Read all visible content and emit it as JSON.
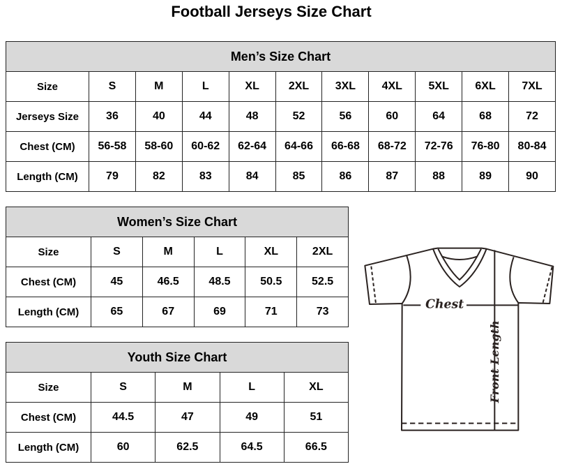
{
  "title": "Football Jerseys Size Chart",
  "men": {
    "heading": "Men’s Size Chart",
    "rows": [
      [
        "Size",
        "S",
        "M",
        "L",
        "XL",
        "2XL",
        "3XL",
        "4XL",
        "5XL",
        "6XL",
        "7XL"
      ],
      [
        "Jerseys Size",
        "36",
        "40",
        "44",
        "48",
        "52",
        "56",
        "60",
        "64",
        "68",
        "72"
      ],
      [
        "Chest (CM)",
        "56-58",
        "58-60",
        "60-62",
        "62-64",
        "64-66",
        "66-68",
        "68-72",
        "72-76",
        "76-80",
        "80-84"
      ],
      [
        "Length (CM)",
        "79",
        "82",
        "83",
        "84",
        "85",
        "86",
        "87",
        "88",
        "89",
        "90"
      ]
    ]
  },
  "women": {
    "heading": "Women’s Size Chart",
    "rows": [
      [
        "Size",
        "S",
        "M",
        "L",
        "XL",
        "2XL"
      ],
      [
        "Chest (CM)",
        "45",
        "46.5",
        "48.5",
        "50.5",
        "52.5"
      ],
      [
        "Length (CM)",
        "65",
        "67",
        "69",
        "71",
        "73"
      ]
    ]
  },
  "youth": {
    "heading": "Youth Size Chart",
    "rows": [
      [
        "Size",
        "S",
        "M",
        "L",
        "XL"
      ],
      [
        "Chest (CM)",
        "44.5",
        "47",
        "49",
        "51"
      ],
      [
        "Length (CM)",
        "60",
        "62.5",
        "64.5",
        "66.5"
      ]
    ]
  },
  "diagram": {
    "chest_label": "Chest",
    "length_label": "Front Length"
  }
}
